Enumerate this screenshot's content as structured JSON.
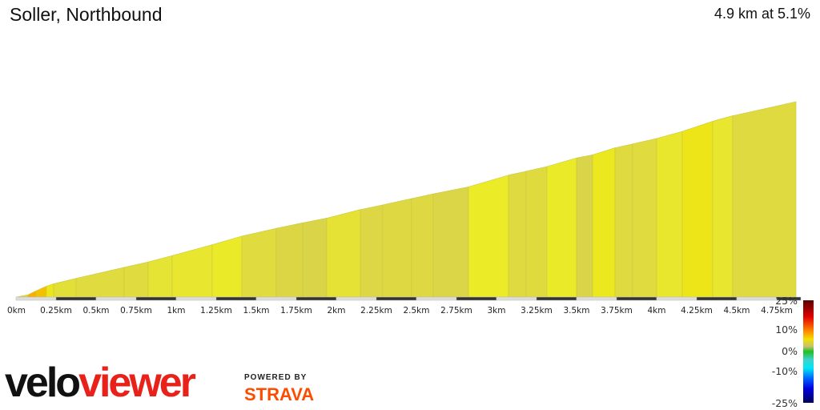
{
  "header": {
    "title": "Soller, Northbound",
    "summary": "4.9 km at 5.1%"
  },
  "chart_data": {
    "type": "area",
    "title": "Soller, Northbound",
    "xlabel": "",
    "ylabel": "",
    "x_unit": "km",
    "y_unit": "m (relative)",
    "xlim": [
      0,
      4.9
    ],
    "x_ticks": [
      "0km",
      "0.25km",
      "0.5km",
      "0.75km",
      "1km",
      "1.25km",
      "1.5km",
      "1.75km",
      "2km",
      "2.25km",
      "2.5km",
      "2.75km",
      "3km",
      "3.25km",
      "3.5km",
      "3.75km",
      "4km",
      "4.25km",
      "4.5km",
      "4.75km"
    ],
    "distance_km": [
      0,
      0.075,
      0.125,
      0.19,
      0.235,
      0.375,
      0.675,
      0.825,
      0.975,
      1.225,
      1.41,
      1.625,
      1.79,
      1.94,
      2.15,
      2.29,
      2.47,
      2.605,
      2.825,
      3.075,
      3.185,
      3.315,
      3.5,
      3.6,
      3.74,
      3.85,
      4.0,
      4.16,
      4.35,
      4.475,
      4.87
    ],
    "elevation_m": [
      0,
      3,
      8,
      14,
      17,
      24,
      38,
      45,
      53,
      67,
      78,
      88,
      95,
      101,
      112,
      118,
      126,
      132,
      141,
      156,
      161,
      167,
      178,
      182,
      191,
      196,
      203,
      212,
      225,
      232,
      250
    ],
    "gradient_legend": {
      "ticks": [
        "25%",
        "10%",
        "0%",
        "-10%",
        "-25%"
      ]
    }
  },
  "branding": {
    "logo_part1": "velo",
    "logo_part2": "viewer",
    "powered": "POWERED BY",
    "strava": "STRAVA"
  }
}
